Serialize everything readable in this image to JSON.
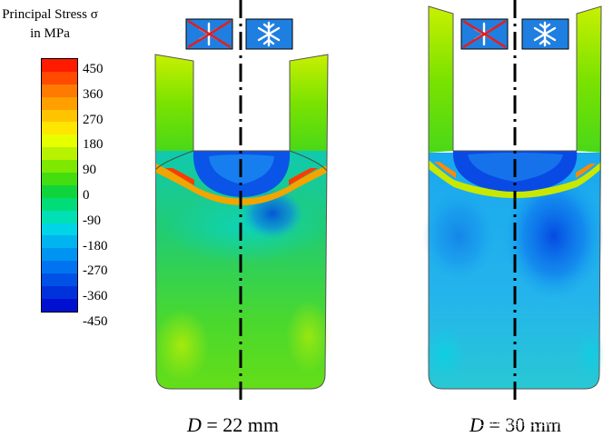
{
  "legend": {
    "title_line1": "Principal Stress σ",
    "title_line2": "in MPa",
    "ticks": [
      "450",
      "360",
      "270",
      "180",
      "90",
      "0",
      "-90",
      "-180",
      "-270",
      "-360",
      "-450"
    ],
    "colors": [
      "#ff1a00",
      "#ff4a00",
      "#ff7a00",
      "#ff9f00",
      "#ffc400",
      "#ffe600",
      "#e8ff00",
      "#b8f200",
      "#7ee800",
      "#44dd10",
      "#10d43c",
      "#00dc78",
      "#00e0b4",
      "#00d4e6",
      "#00b4f0",
      "#0094f2",
      "#0074f0",
      "#0052e6",
      "#0032dc",
      "#0010d0"
    ]
  },
  "panels": [
    {
      "caption_var": "D",
      "caption_rest": " = 22 mm"
    },
    {
      "caption_var": "D",
      "caption_rest": " = 30 mm"
    }
  ],
  "icons": {
    "no_cooling": "snowflake-crossed-icon",
    "cooling": "snowflake-icon",
    "icon_bg": "#1f7fe0"
  },
  "watermark": "CSDN @m0_66361928"
}
